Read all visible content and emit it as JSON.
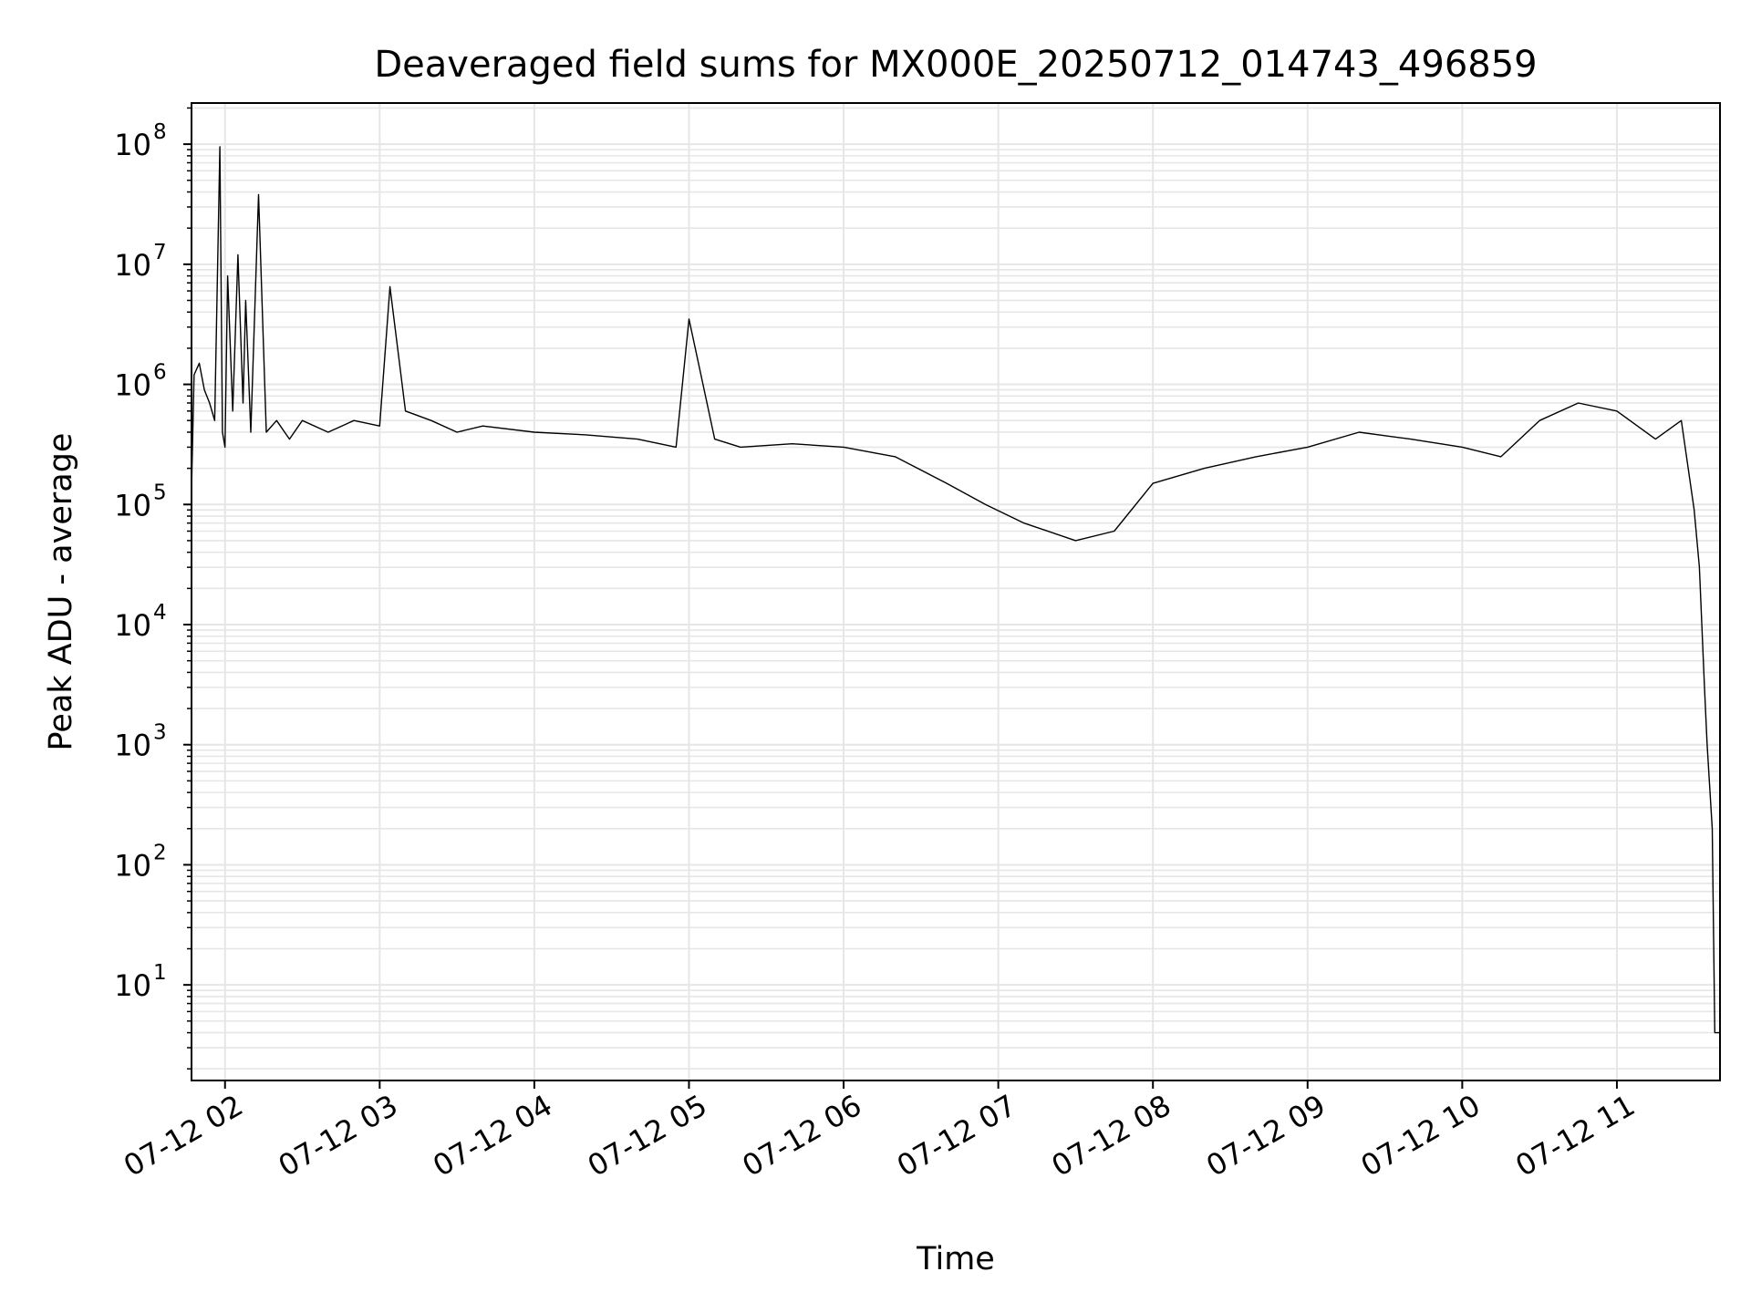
{
  "chart_data": {
    "type": "line",
    "title": "Deaveraged field sums for MX000E_20250712_014743_496859",
    "xlabel": "Time",
    "ylabel": "Peak ADU - average",
    "yscale": "log",
    "ylim": [
      1.6,
      220000000
    ],
    "xlim": [
      "2025-07-12 01:47",
      "2025-07-12 11:40"
    ],
    "grid": true,
    "grid_color": "#e6e6e6",
    "line_color": "#000000",
    "x_ticks": [
      {
        "t": "2025-07-12 02:00",
        "label": "07-12 02"
      },
      {
        "t": "2025-07-12 03:00",
        "label": "07-12 03"
      },
      {
        "t": "2025-07-12 04:00",
        "label": "07-12 04"
      },
      {
        "t": "2025-07-12 05:00",
        "label": "07-12 05"
      },
      {
        "t": "2025-07-12 06:00",
        "label": "07-12 06"
      },
      {
        "t": "2025-07-12 07:00",
        "label": "07-12 07"
      },
      {
        "t": "2025-07-12 08:00",
        "label": "07-12 08"
      },
      {
        "t": "2025-07-12 09:00",
        "label": "07-12 09"
      },
      {
        "t": "2025-07-12 10:00",
        "label": "07-12 10"
      },
      {
        "t": "2025-07-12 11:00",
        "label": "07-12 11"
      }
    ],
    "y_ticks": [
      {
        "value": 10,
        "base": "10",
        "exp": "1"
      },
      {
        "value": 100,
        "base": "10",
        "exp": "2"
      },
      {
        "value": 1000,
        "base": "10",
        "exp": "3"
      },
      {
        "value": 10000,
        "base": "10",
        "exp": "4"
      },
      {
        "value": 100000,
        "base": "10",
        "exp": "5"
      },
      {
        "value": 1000000,
        "base": "10",
        "exp": "6"
      },
      {
        "value": 10000000,
        "base": "10",
        "exp": "7"
      },
      {
        "value": 100000000,
        "base": "10",
        "exp": "8"
      }
    ],
    "series": [
      {
        "x": [
          "2025-07-12 01:47",
          "2025-07-12 01:48",
          "2025-07-12 01:50",
          "2025-07-12 01:52",
          "2025-07-12 01:54",
          "2025-07-12 01:56",
          "2025-07-12 01:58",
          "2025-07-12 01:59",
          "2025-07-12 02:00",
          "2025-07-12 02:01",
          "2025-07-12 02:03",
          "2025-07-12 02:05",
          "2025-07-12 02:07",
          "2025-07-12 02:08",
          "2025-07-12 02:10",
          "2025-07-12 02:13",
          "2025-07-12 02:16",
          "2025-07-12 02:20",
          "2025-07-12 02:25",
          "2025-07-12 02:30",
          "2025-07-12 02:40",
          "2025-07-12 02:50",
          "2025-07-12 03:00",
          "2025-07-12 03:04",
          "2025-07-12 03:10",
          "2025-07-12 03:20",
          "2025-07-12 03:30",
          "2025-07-12 03:40",
          "2025-07-12 04:00",
          "2025-07-12 04:20",
          "2025-07-12 04:40",
          "2025-07-12 04:55",
          "2025-07-12 05:00",
          "2025-07-12 05:10",
          "2025-07-12 05:20",
          "2025-07-12 05:40",
          "2025-07-12 06:00",
          "2025-07-12 06:20",
          "2025-07-12 06:40",
          "2025-07-12 06:55",
          "2025-07-12 07:10",
          "2025-07-12 07:30",
          "2025-07-12 07:45",
          "2025-07-12 08:00",
          "2025-07-12 08:20",
          "2025-07-12 08:40",
          "2025-07-12 09:00",
          "2025-07-12 09:20",
          "2025-07-12 09:40",
          "2025-07-12 10:00",
          "2025-07-12 10:15",
          "2025-07-12 10:30",
          "2025-07-12 10:45",
          "2025-07-12 11:00",
          "2025-07-12 11:15",
          "2025-07-12 11:25",
          "2025-07-12 11:30",
          "2025-07-12 11:32",
          "2025-07-12 11:34",
          "2025-07-12 11:35",
          "2025-07-12 11:37",
          "2025-07-12 11:38",
          "2025-07-12 11:39",
          "2025-07-12 11:40"
        ],
        "y": [
          130000,
          1200000,
          1500000,
          900000,
          700000,
          500000,
          95000000,
          400000,
          300000,
          8000000,
          600000,
          12000000,
          700000,
          5000000,
          400000,
          38000000,
          400000,
          500000,
          350000,
          500000,
          400000,
          500000,
          450000,
          6500000,
          600000,
          500000,
          400000,
          450000,
          400000,
          380000,
          350000,
          300000,
          3500000,
          350000,
          300000,
          320000,
          300000,
          250000,
          150000,
          100000,
          70000,
          50000,
          60000,
          150000,
          200000,
          250000,
          300000,
          400000,
          350000,
          300000,
          250000,
          500000,
          700000,
          600000,
          350000,
          500000,
          90000,
          30000,
          3000,
          1000,
          200,
          4,
          4,
          4
        ]
      }
    ]
  }
}
